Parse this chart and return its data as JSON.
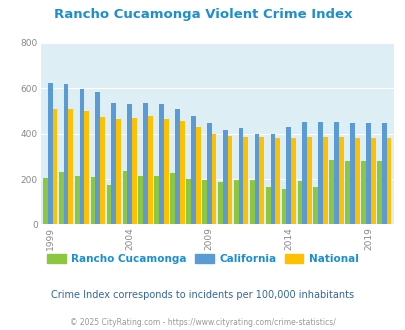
{
  "title": "Rancho Cucamonga Violent Crime Index",
  "years": [
    1999,
    2000,
    2001,
    2002,
    2003,
    2004,
    2005,
    2006,
    2007,
    2008,
    2009,
    2010,
    2011,
    2012,
    2013,
    2014,
    2015,
    2016,
    2017,
    2018,
    2019,
    2020
  ],
  "rancho": [
    205,
    230,
    212,
    210,
    175,
    235,
    212,
    212,
    225,
    200,
    195,
    185,
    195,
    195,
    165,
    155,
    190,
    165,
    285,
    280,
    280,
    280
  ],
  "california": [
    625,
    620,
    597,
    585,
    535,
    530,
    535,
    530,
    510,
    477,
    445,
    415,
    425,
    400,
    400,
    430,
    450,
    450,
    450,
    445,
    445,
    445
  ],
  "national": [
    510,
    507,
    500,
    475,
    465,
    468,
    478,
    465,
    455,
    430,
    400,
    390,
    385,
    385,
    380,
    380,
    385,
    385,
    385,
    383,
    380,
    380
  ],
  "colors": {
    "rancho": "#8dc63f",
    "california": "#5b9bd5",
    "national": "#ffc000"
  },
  "plot_bg": "#ddeef4",
  "ylim": [
    0,
    800
  ],
  "yticks": [
    0,
    200,
    400,
    600,
    800
  ],
  "xtick_years": [
    1999,
    2004,
    2009,
    2014,
    2019
  ],
  "subtitle": "Crime Index corresponds to incidents per 100,000 inhabitants",
  "footer": "© 2025 CityRating.com - https://www.cityrating.com/crime-statistics/",
  "legend_labels": [
    "Rancho Cucamonga",
    "California",
    "National"
  ],
  "title_color": "#1b8fd1",
  "subtitle_color": "#336699",
  "footer_color": "#999999",
  "tick_color": "#888888"
}
